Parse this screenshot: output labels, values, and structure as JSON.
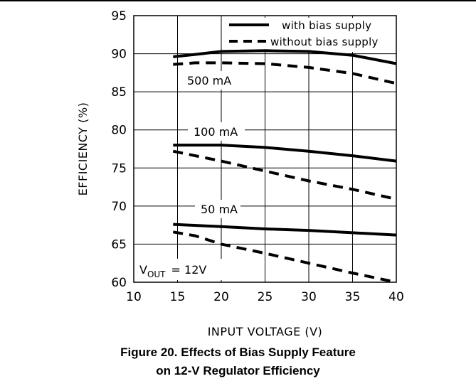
{
  "chart_data": {
    "type": "line",
    "xlabel": "INPUT VOLTAGE (V)",
    "ylabel": "EFFICIENCY (%)",
    "xlim": [
      10,
      40
    ],
    "ylim": [
      60,
      95
    ],
    "xticks": [
      10,
      15,
      20,
      25,
      30,
      35,
      40
    ],
    "yticks": [
      60,
      65,
      70,
      75,
      80,
      85,
      90,
      95
    ],
    "grid": true,
    "legend_position": "top-right",
    "legend": [
      {
        "label": "with bias supply",
        "style": "solid"
      },
      {
        "label": "without bias supply",
        "style": "dashed"
      }
    ],
    "annotations": {
      "label_500": "500 mA",
      "label_100": "100 mA",
      "label_50": "50 mA",
      "vout_prefix": "V",
      "vout_sub": "OUT",
      "vout_value": "= 12V"
    },
    "series": [
      {
        "group": "500 mA",
        "style": "solid",
        "x": [
          14.5,
          17,
          20,
          25,
          30,
          35,
          40
        ],
        "y": [
          89.6,
          89.9,
          90.3,
          90.4,
          90.3,
          89.8,
          88.7
        ]
      },
      {
        "group": "500 mA",
        "style": "dashed",
        "x": [
          14.5,
          17,
          20,
          25,
          30,
          35,
          40
        ],
        "y": [
          88.6,
          88.8,
          88.8,
          88.7,
          88.2,
          87.4,
          86.1
        ]
      },
      {
        "group": "100 mA",
        "style": "solid",
        "x": [
          14.5,
          17,
          20,
          25,
          30,
          35,
          40
        ],
        "y": [
          78.0,
          78.0,
          78.0,
          77.7,
          77.2,
          76.6,
          75.9
        ]
      },
      {
        "group": "100 mA",
        "style": "dashed",
        "x": [
          14.5,
          20,
          25,
          30,
          35,
          40
        ],
        "y": [
          77.2,
          75.9,
          74.6,
          73.3,
          72.2,
          70.9
        ]
      },
      {
        "group": "50 mA",
        "style": "solid",
        "x": [
          14.5,
          20,
          25,
          30,
          35,
          40
        ],
        "y": [
          67.6,
          67.3,
          67.0,
          66.8,
          66.5,
          66.2
        ]
      },
      {
        "group": "50 mA",
        "style": "dashed",
        "x": [
          14.5,
          17,
          20,
          25,
          30,
          35,
          40
        ],
        "y": [
          66.6,
          66.1,
          65.0,
          63.8,
          62.5,
          61.2,
          60.0
        ]
      }
    ]
  },
  "caption": {
    "line1": "Figure 20. Effects of Bias Supply Feature",
    "line2": "on 12-V Regulator Efficiency"
  }
}
